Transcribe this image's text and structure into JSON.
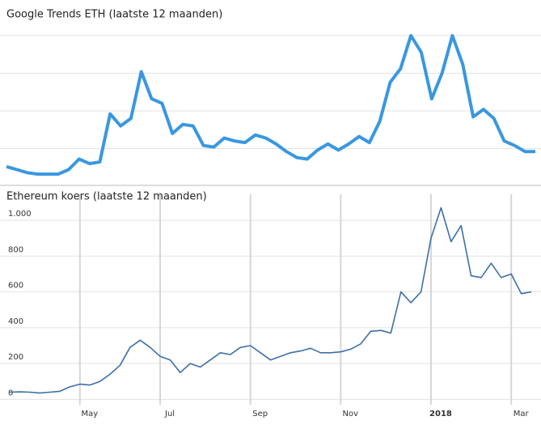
{
  "chart_data": [
    {
      "type": "line",
      "title": "Google Trends ETH (laatste 12 maanden)",
      "color": "#3a97e0",
      "ylim": [
        0,
        100
      ],
      "yticks": [
        25,
        50,
        75,
        100
      ],
      "grid": true,
      "tick_labels": false,
      "values": [
        13,
        11,
        9,
        8,
        8,
        8,
        11,
        18,
        15,
        16,
        48,
        40,
        45,
        76,
        58,
        55,
        35,
        41,
        40,
        27,
        26,
        32,
        30,
        29,
        34,
        32,
        28,
        23,
        19,
        18,
        24,
        28,
        24,
        28,
        33,
        29,
        43,
        69,
        78,
        100,
        89,
        58,
        75,
        100,
        81,
        46,
        51,
        45,
        30,
        27,
        23,
        23
      ]
    },
    {
      "type": "line",
      "title": "Ethereum koers (laatste 12 maanden)",
      "color": "#3d6fa8",
      "ylim": [
        -30,
        1145
      ],
      "yticks": [
        0,
        200,
        400,
        600,
        800,
        {
          "value": 1000,
          "label": "1.000"
        }
      ],
      "grid": true,
      "tick_labels": true,
      "bold_categories": [
        42
      ],
      "categories": [
        null,
        null,
        null,
        null,
        null,
        null,
        null,
        "May",
        null,
        null,
        null,
        null,
        null,
        null,
        null,
        "Jul",
        null,
        null,
        null,
        null,
        null,
        null,
        null,
        null,
        "Sep",
        null,
        null,
        null,
        null,
        null,
        null,
        null,
        null,
        "Nov",
        null,
        null,
        null,
        null,
        null,
        null,
        null,
        null,
        "2018",
        null,
        null,
        null,
        null,
        null,
        null,
        null,
        "Mar",
        null,
        null
      ],
      "values": [
        40,
        42,
        40,
        35,
        40,
        45,
        70,
        85,
        80,
        100,
        140,
        190,
        290,
        330,
        290,
        240,
        220,
        150,
        200,
        180,
        220,
        260,
        250,
        290,
        300,
        260,
        220,
        240,
        260,
        270,
        285,
        260,
        260,
        265,
        280,
        310,
        380,
        385,
        370,
        600,
        540,
        600,
        900,
        1070,
        880,
        970,
        690,
        680,
        760,
        680,
        700,
        590,
        600
      ]
    }
  ]
}
